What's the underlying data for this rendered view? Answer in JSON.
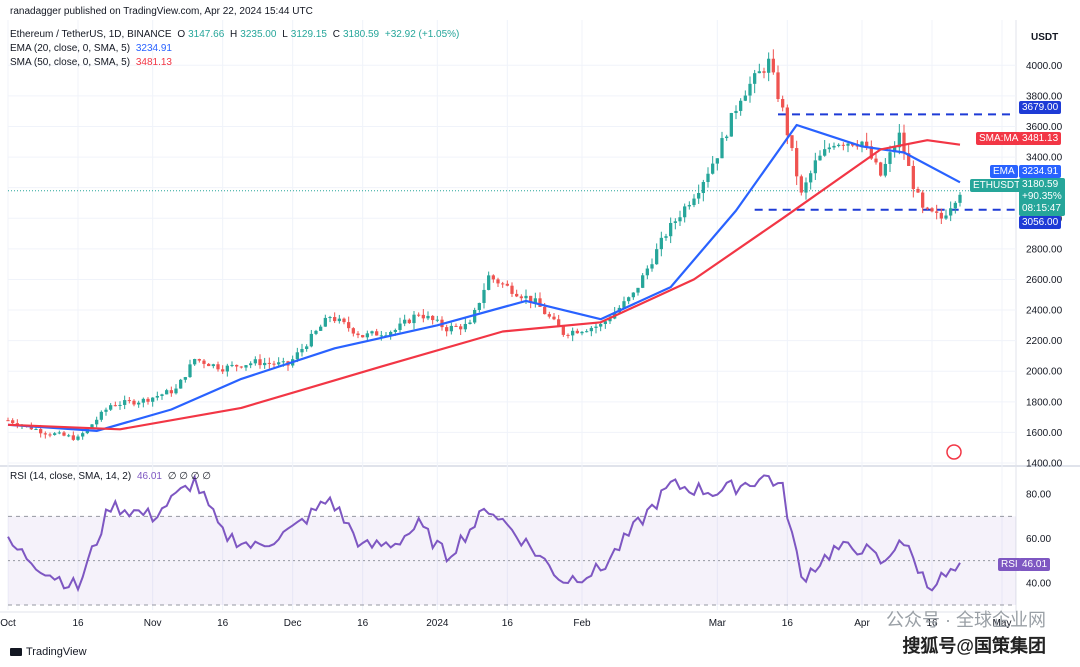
{
  "header": {
    "publisher": "ranadagger published on TradingView.com, Apr 22, 2024 15:44 UTC",
    "symbol": "Ethereum / TetherUS, 1D, BINANCE",
    "ohlc": {
      "o_label": "O",
      "o": "3147.66",
      "h_label": "H",
      "h": "3235.00",
      "l_label": "L",
      "l": "3129.15",
      "c_label": "C",
      "c": "3180.59",
      "chg": "+32.92 (+1.05%)"
    },
    "ema_label": "EMA (20, close, 0, SMA, 5)",
    "ema_value": "3234.91",
    "sma_label": "SMA (50, close, 0, SMA, 5)",
    "sma_value": "3481.13",
    "rsi_label": "RSI (14, close, SMA, 14, 2)",
    "rsi_value": "46.01",
    "rsi_extra": "∅ ∅ ∅ ∅"
  },
  "axis": {
    "currency": "USDT"
  },
  "tags": {
    "sma_name": "SMA:MA",
    "sma_value": "3481.13",
    "ema_name": "EMA",
    "ema_value": "3234.91",
    "price_name": "ETHUSDT",
    "price_value": "3180.59",
    "price_chg": "+90.35%",
    "price_time": "08:15:47",
    "level_high": "3679.00",
    "level_low": "3056.00",
    "rsi_name": "RSI",
    "rsi_value": "46.01"
  },
  "colors": {
    "up": "#26a69a",
    "down": "#ef5350",
    "ema": "#2962ff",
    "sma": "#f23645",
    "rsi": "#7e57c2",
    "level": "#1e3bd6"
  },
  "footer": {
    "brand": "TradingView",
    "watermark": "公众号 · 全球企业网",
    "watermark2": "搜狐号@国策集团"
  },
  "chart_data": [
    {
      "type": "candlestick",
      "title": "Ethereum / TetherUS, 1D, BINANCE",
      "ylim": [
        1400,
        4100
      ],
      "y_ticks": [
        1400,
        1600,
        1800,
        2000,
        2200,
        2400,
        2600,
        2800,
        3000,
        3200,
        3400,
        3600,
        3800,
        4000
      ],
      "x_tick_labels": [
        "Oct",
        "16",
        "Nov",
        "16",
        "Dec",
        "16",
        "2024",
        "16",
        "Feb",
        "Mar",
        "16",
        "Apr",
        "16",
        "May"
      ],
      "x_tick_dates": [
        "2023-10-01",
        "2023-10-16",
        "2023-11-01",
        "2023-11-16",
        "2023-12-01",
        "2023-12-16",
        "2024-01-01",
        "2024-01-16",
        "2024-02-01",
        "2024-03-01",
        "2024-03-16",
        "2024-04-01",
        "2024-04-16",
        "2024-05-01"
      ],
      "x_range": [
        "2023-10-01",
        "2024-05-04"
      ],
      "horizontal_levels": [
        3679,
        3056
      ],
      "close_anchors": [
        [
          "2023-10-01",
          1680
        ],
        [
          "2023-10-09",
          1600
        ],
        [
          "2023-10-16",
          1560
        ],
        [
          "2023-10-23",
          1780
        ],
        [
          "2023-10-30",
          1810
        ],
        [
          "2023-11-06",
          1880
        ],
        [
          "2023-11-10",
          2080
        ],
        [
          "2023-11-16",
          2020
        ],
        [
          "2023-11-23",
          2060
        ],
        [
          "2023-11-30",
          2040
        ],
        [
          "2023-12-05",
          2220
        ],
        [
          "2023-12-09",
          2360
        ],
        [
          "2023-12-16",
          2230
        ],
        [
          "2023-12-23",
          2270
        ],
        [
          "2023-12-28",
          2380
        ],
        [
          "2024-01-03",
          2280
        ],
        [
          "2024-01-08",
          2300
        ],
        [
          "2024-01-12",
          2620
        ],
        [
          "2024-01-16",
          2550
        ],
        [
          "2024-01-22",
          2450
        ],
        [
          "2024-01-28",
          2250
        ],
        [
          "2024-02-05",
          2300
        ],
        [
          "2024-02-12",
          2500
        ],
        [
          "2024-02-19",
          2900
        ],
        [
          "2024-02-26",
          3200
        ],
        [
          "2024-03-01",
          3420
        ],
        [
          "2024-03-06",
          3800
        ],
        [
          "2024-03-12",
          4020
        ],
        [
          "2024-03-15",
          3700
        ],
        [
          "2024-03-19",
          3150
        ],
        [
          "2024-03-22",
          3360
        ],
        [
          "2024-03-26",
          3500
        ],
        [
          "2024-04-01",
          3500
        ],
        [
          "2024-04-05",
          3280
        ],
        [
          "2024-04-09",
          3540
        ],
        [
          "2024-04-12",
          3220
        ],
        [
          "2024-04-14",
          3050
        ],
        [
          "2024-04-18",
          3000
        ],
        [
          "2024-04-22",
          3180
        ]
      ],
      "series": [
        {
          "name": "EMA (20, close, 0, SMA, 5)",
          "values": [
            [
              "2023-10-01",
              1650
            ],
            [
              "2023-10-20",
              1610
            ],
            [
              "2023-11-05",
              1750
            ],
            [
              "2023-11-20",
              1950
            ],
            [
              "2023-12-10",
              2150
            ],
            [
              "2024-01-01",
              2300
            ],
            [
              "2024-01-20",
              2460
            ],
            [
              "2024-02-05",
              2340
            ],
            [
              "2024-02-20",
              2550
            ],
            [
              "2024-03-05",
              3050
            ],
            [
              "2024-03-18",
              3610
            ],
            [
              "2024-04-01",
              3470
            ],
            [
              "2024-04-10",
              3430
            ],
            [
              "2024-04-22",
              3234.91
            ]
          ]
        },
        {
          "name": "SMA (50, close, 0, SMA, 5)",
          "values": [
            [
              "2023-10-01",
              1650
            ],
            [
              "2023-10-25",
              1620
            ],
            [
              "2023-11-20",
              1760
            ],
            [
              "2023-12-20",
              2030
            ],
            [
              "2024-01-15",
              2260
            ],
            [
              "2024-02-05",
              2320
            ],
            [
              "2024-02-25",
              2600
            ],
            [
              "2024-03-15",
              3000
            ],
            [
              "2024-04-05",
              3450
            ],
            [
              "2024-04-15",
              3510
            ],
            [
              "2024-04-22",
              3481.13
            ]
          ]
        }
      ]
    },
    {
      "type": "line",
      "title": "RSI (14, close, SMA, 14, 2)",
      "ylim": [
        30,
        90
      ],
      "y_ticks": [
        40,
        60,
        80
      ],
      "band": [
        30,
        70
      ],
      "series": [
        {
          "name": "RSI",
          "values": [
            [
              "2023-10-01",
              58
            ],
            [
              "2023-10-10",
              44
            ],
            [
              "2023-10-16",
              38
            ],
            [
              "2023-10-23",
              75
            ],
            [
              "2023-11-01",
              70
            ],
            [
              "2023-11-10",
              86
            ],
            [
              "2023-11-16",
              62
            ],
            [
              "2023-11-23",
              56
            ],
            [
              "2023-12-01",
              64
            ],
            [
              "2023-12-09",
              78
            ],
            [
              "2023-12-16",
              56
            ],
            [
              "2023-12-23",
              58
            ],
            [
              "2023-12-28",
              66
            ],
            [
              "2024-01-03",
              52
            ],
            [
              "2024-01-12",
              74
            ],
            [
              "2024-01-22",
              54
            ],
            [
              "2024-01-28",
              41
            ],
            [
              "2024-02-05",
              46
            ],
            [
              "2024-02-12",
              64
            ],
            [
              "2024-02-20",
              84
            ],
            [
              "2024-03-01",
              81
            ],
            [
              "2024-03-12",
              88
            ],
            [
              "2024-03-15",
              82
            ],
            [
              "2024-03-19",
              42
            ],
            [
              "2024-03-26",
              55
            ],
            [
              "2024-04-01",
              56
            ],
            [
              "2024-04-06",
              48
            ],
            [
              "2024-04-09",
              61
            ],
            [
              "2024-04-13",
              47
            ],
            [
              "2024-04-15",
              39
            ],
            [
              "2024-04-18",
              42
            ],
            [
              "2024-04-22",
              46.01
            ]
          ]
        }
      ]
    }
  ]
}
